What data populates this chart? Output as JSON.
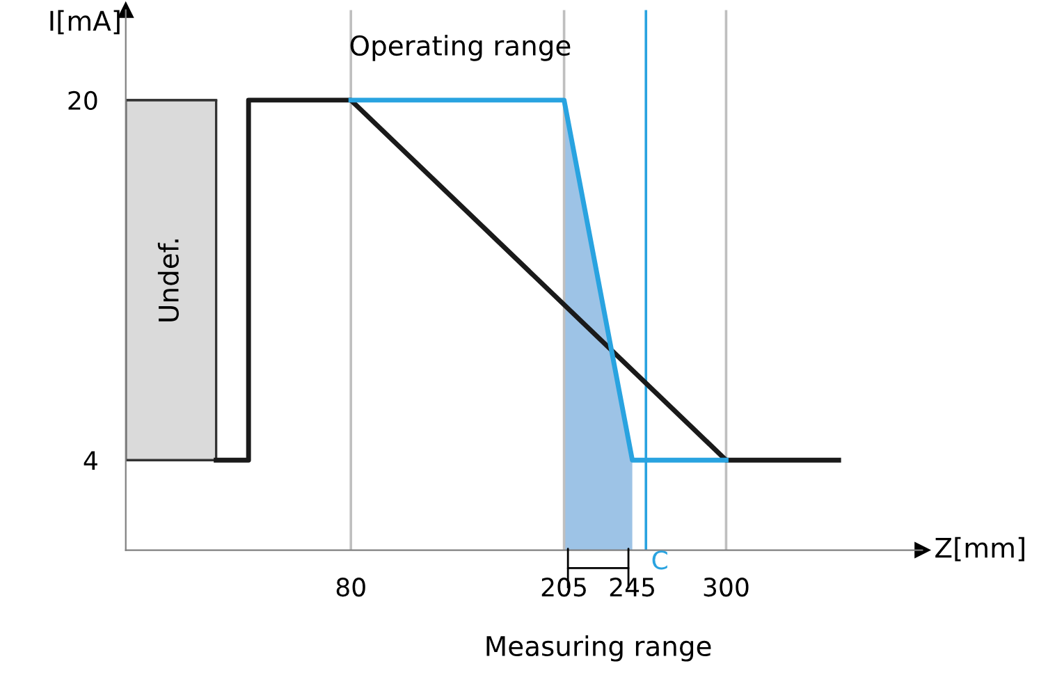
{
  "chart_data": {
    "type": "line",
    "xlabel": "Z[mm]",
    "ylabel": "I[mA]",
    "series": [
      {
        "type": "line",
        "x": [
          -52,
          1
        ],
        "values": [
          20,
          20
        ],
        "lower": [
          4,
          4
        ],
        "upper": [
          20,
          20
        ],
        "color": "#333333"
      },
      {
        "type": "area",
        "x": [
          205,
          235,
          245
        ],
        "values": [
          20,
          8,
          4
        ],
        "color": "#9dc3e6"
      },
      {
        "x": [
          1,
          20,
          20,
          80,
          300,
          366
        ],
        "values": [
          4,
          4,
          20,
          20,
          4,
          4
        ],
        "color": "#1a1a1a"
      },
      {
        "x": [
          80,
          205,
          235,
          245,
          300
        ],
        "values": [
          20,
          20,
          8,
          4,
          4
        ],
        "color": "#29a3e0"
      }
    ],
    "xlim": [
      -52,
      415
    ],
    "ylim": [
      0,
      24
    ],
    "xticks": [
      80,
      205,
      245,
      300
    ],
    "yticks": [
      4,
      20
    ],
    "ref_lines": [
      {
        "axis": "x",
        "value": 80,
        "color": "#bfbfbf"
      },
      {
        "axis": "x",
        "value": 205,
        "color": "#bfbfbf"
      },
      {
        "axis": "x",
        "value": 300,
        "color": "#bfbfbf"
      },
      {
        "axis": "x",
        "value": 253,
        "label": "C",
        "color": "#29a3e0"
      }
    ],
    "annotations": [
      "Undef.",
      "Operating range",
      "Measuring range"
    ],
    "legend": false,
    "marker": "none",
    "line_style": "solid"
  }
}
